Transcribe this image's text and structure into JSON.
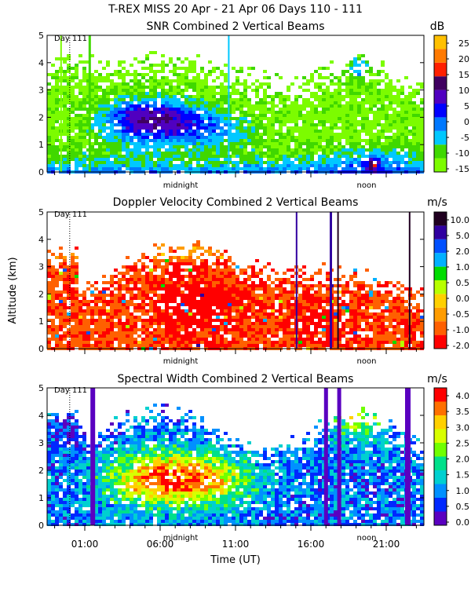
{
  "figure": {
    "title": "T-REX MISS   20 Apr - 21 Apr 06 Days 110 - 111",
    "x_axis_label": "Time (UT)",
    "y_axis_label": "Altitude (km)",
    "x_ticks": [
      "01:00",
      "06:00",
      "11:00",
      "16:00",
      "21:00"
    ],
    "y_ticks": [
      "0",
      "1",
      "2",
      "3",
      "4",
      "5"
    ],
    "day_marker": "Day 111",
    "midnight_label": "midnight",
    "noon_label": "noon"
  },
  "colors": {
    "snr": [
      "#7cfc00",
      "#40d800",
      "#00c8ff",
      "#0078ff",
      "#0000ff",
      "#5000c0",
      "#400060",
      "#ff2000",
      "#ff7a00",
      "#ffc000"
    ],
    "doppler": [
      "#ff0000",
      "#ff6000",
      "#ff9c00",
      "#ffd000",
      "#b8ff00",
      "#00dc00",
      "#00b0ff",
      "#0050ff",
      "#3000a0",
      "#200020"
    ],
    "width": [
      "#5a00c0",
      "#0028ff",
      "#0090ff",
      "#00d0d0",
      "#00e08a",
      "#70ff00",
      "#d8ff00",
      "#ffd000",
      "#ff7000",
      "#ff0000"
    ]
  },
  "chart_data": [
    {
      "type": "heatmap",
      "title": "SNR Combined 2 Vertical Beams",
      "colorbar_unit": "dB",
      "colorbar_ticks": [
        "25",
        "20",
        "15",
        "10",
        "5",
        "0",
        "-5",
        "-10",
        "-15"
      ],
      "colorbar_range": [
        -15,
        25
      ],
      "xlabel": "Time (UT)",
      "ylabel": "Altitude (km)",
      "xlim_hours": [
        -1.5,
        23.5
      ],
      "ylim": [
        0,
        5
      ]
    },
    {
      "type": "heatmap",
      "title": "Doppler Velocity Combined 2 Vertical Beams",
      "colorbar_unit": "m/s",
      "colorbar_ticks": [
        "10.0",
        "5.0",
        "2.0",
        "1.0",
        "0.5",
        "0.0",
        "-0.5",
        "-1.0",
        "-2.0"
      ],
      "colorbar_range": [
        -2.0,
        10.0
      ],
      "xlabel": "Time (UT)",
      "ylabel": "Altitude (km)",
      "xlim_hours": [
        -1.5,
        23.5
      ],
      "ylim": [
        0,
        5
      ]
    },
    {
      "type": "heatmap",
      "title": "Spectral Width Combined 2 Vertical Beams",
      "colorbar_unit": "m/s",
      "colorbar_ticks": [
        "4.0",
        "3.5",
        "3.0",
        "2.5",
        "2.0",
        "1.5",
        "1.0",
        "0.5",
        "0.0"
      ],
      "colorbar_range": [
        0.0,
        4.0
      ],
      "xlabel": "Time (UT)",
      "ylabel": "Altitude (km)",
      "xlim_hours": [
        -1.5,
        23.5
      ],
      "ylim": [
        0,
        5
      ]
    }
  ]
}
